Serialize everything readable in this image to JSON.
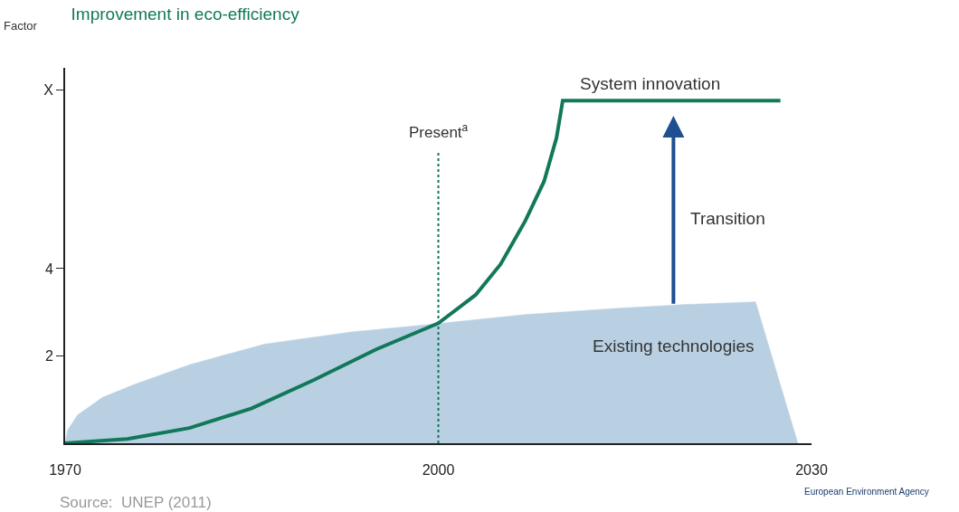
{
  "chart_data": {
    "type": "line",
    "title": "Improvement in eco-efficiency",
    "ylabel": "Factor",
    "xlim": [
      1970,
      2030
    ],
    "xticks": [
      1970,
      2000,
      2030
    ],
    "ylim": [
      0,
      8.6
    ],
    "yticks": [
      2,
      4,
      {
        "value": 8.1,
        "label": "X"
      }
    ],
    "grid": false,
    "marker": "none",
    "series": [
      {
        "type": "area",
        "color": "#b9d0e3",
        "x": [
          1970,
          1970.2,
          1971,
          1973,
          1975.5,
          1980,
          1986,
          1993,
          2000,
          2007,
          2014.8,
          2020,
          2025.5,
          2028.9
        ],
        "values": [
          0,
          0.3,
          0.65,
          1.05,
          1.34,
          1.8,
          2.27,
          2.55,
          2.74,
          2.95,
          3.1,
          3.18,
          3.24,
          0
        ]
      },
      {
        "color": "#11785a",
        "line_style": "solid",
        "x": [
          1970,
          1975,
          1980,
          1985,
          1990,
          1995,
          2000,
          2003,
          2005,
          2007,
          2008.5,
          2009.5,
          2010,
          2010.05,
          2027.5
        ],
        "values": [
          0,
          0.1,
          0.35,
          0.8,
          1.45,
          2.15,
          2.75,
          3.4,
          4.1,
          5.1,
          6.0,
          7.0,
          7.85,
          7.85,
          7.85
        ]
      }
    ],
    "ref_lines": [
      {
        "axis": "x",
        "value": 2000,
        "label": "Present$^{a}$",
        "color": "#11785a",
        "line_style": "dotted"
      }
    ],
    "annotations": [
      {
        "text": "System innovation",
        "x": 2017,
        "y": 7.85
      },
      "Transition",
      "Existing technologies",
      "Source:  UNEP (2011)",
      "European Environment Agency"
    ]
  }
}
